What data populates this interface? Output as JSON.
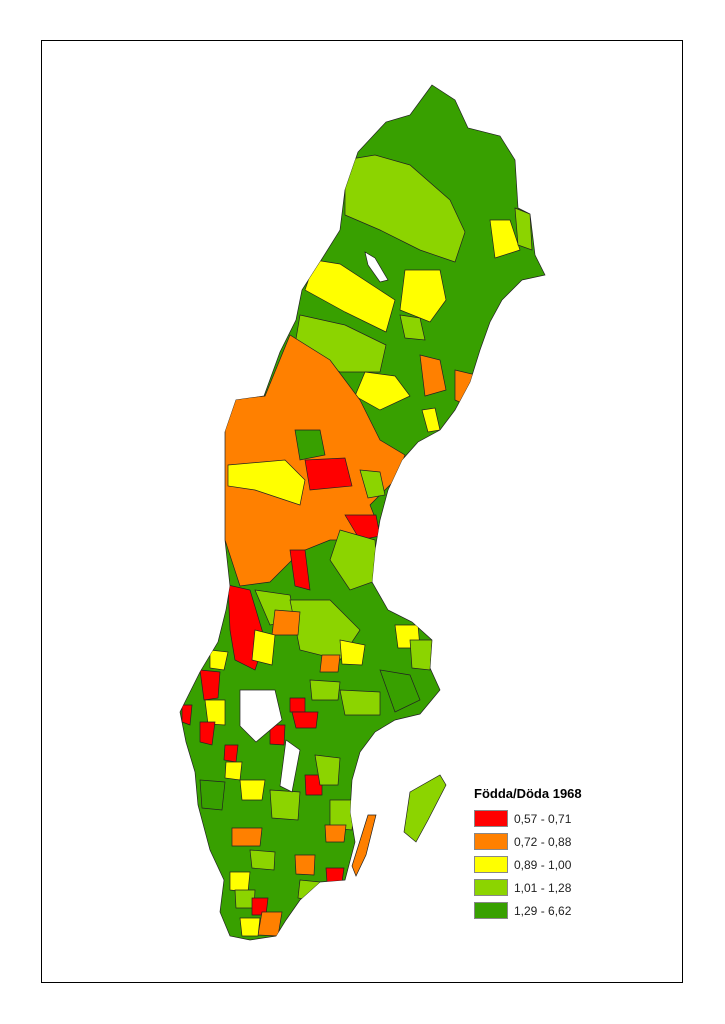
{
  "legend": {
    "title": "Födda/Döda 1968",
    "classes": [
      {
        "label": "0,57 - 0,71",
        "color": "#ff0000"
      },
      {
        "label": "0,72 - 0,88",
        "color": "#ff8000"
      },
      {
        "label": "0,89 - 1,00",
        "color": "#ffff00"
      },
      {
        "label": "1,01 - 1,28",
        "color": "#8cd400"
      },
      {
        "label": "1,29 - 6,62",
        "color": "#38a000"
      }
    ]
  },
  "border_color": "#000000",
  "lake_color": "#ffffff"
}
